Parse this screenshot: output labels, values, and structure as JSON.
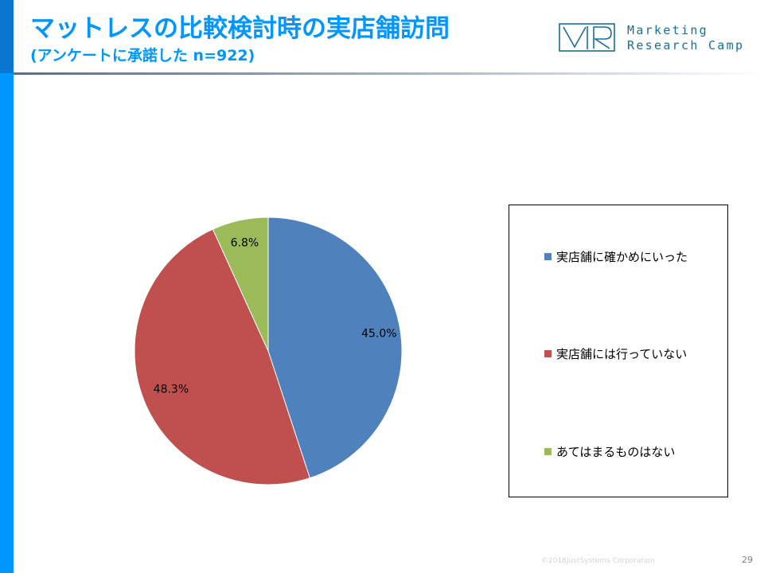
{
  "header": {
    "title": "マットレスの比較検討時の実店舗訪問",
    "subtitle": "(アンケートに承諾した n=922)"
  },
  "logo": {
    "mark": "VR",
    "line1": "Marketing",
    "line2": "Research Camp"
  },
  "chart_data": {
    "type": "pie",
    "title": "",
    "categories": [
      "実店舗に確かめにいった",
      "実店舗には行っていない",
      "あてはまるものはない"
    ],
    "values": [
      45.0,
      48.3,
      6.8
    ],
    "data_labels": [
      "45.0%",
      "48.3%",
      "6.8%"
    ],
    "colors": [
      "#4f81bd",
      "#c0504d",
      "#9bbb59"
    ],
    "start_angle": "12 o'clock, clockwise",
    "legend": "right"
  },
  "footer": {
    "copyright": "©2018JustSystems Corporation",
    "page_number": "29"
  }
}
